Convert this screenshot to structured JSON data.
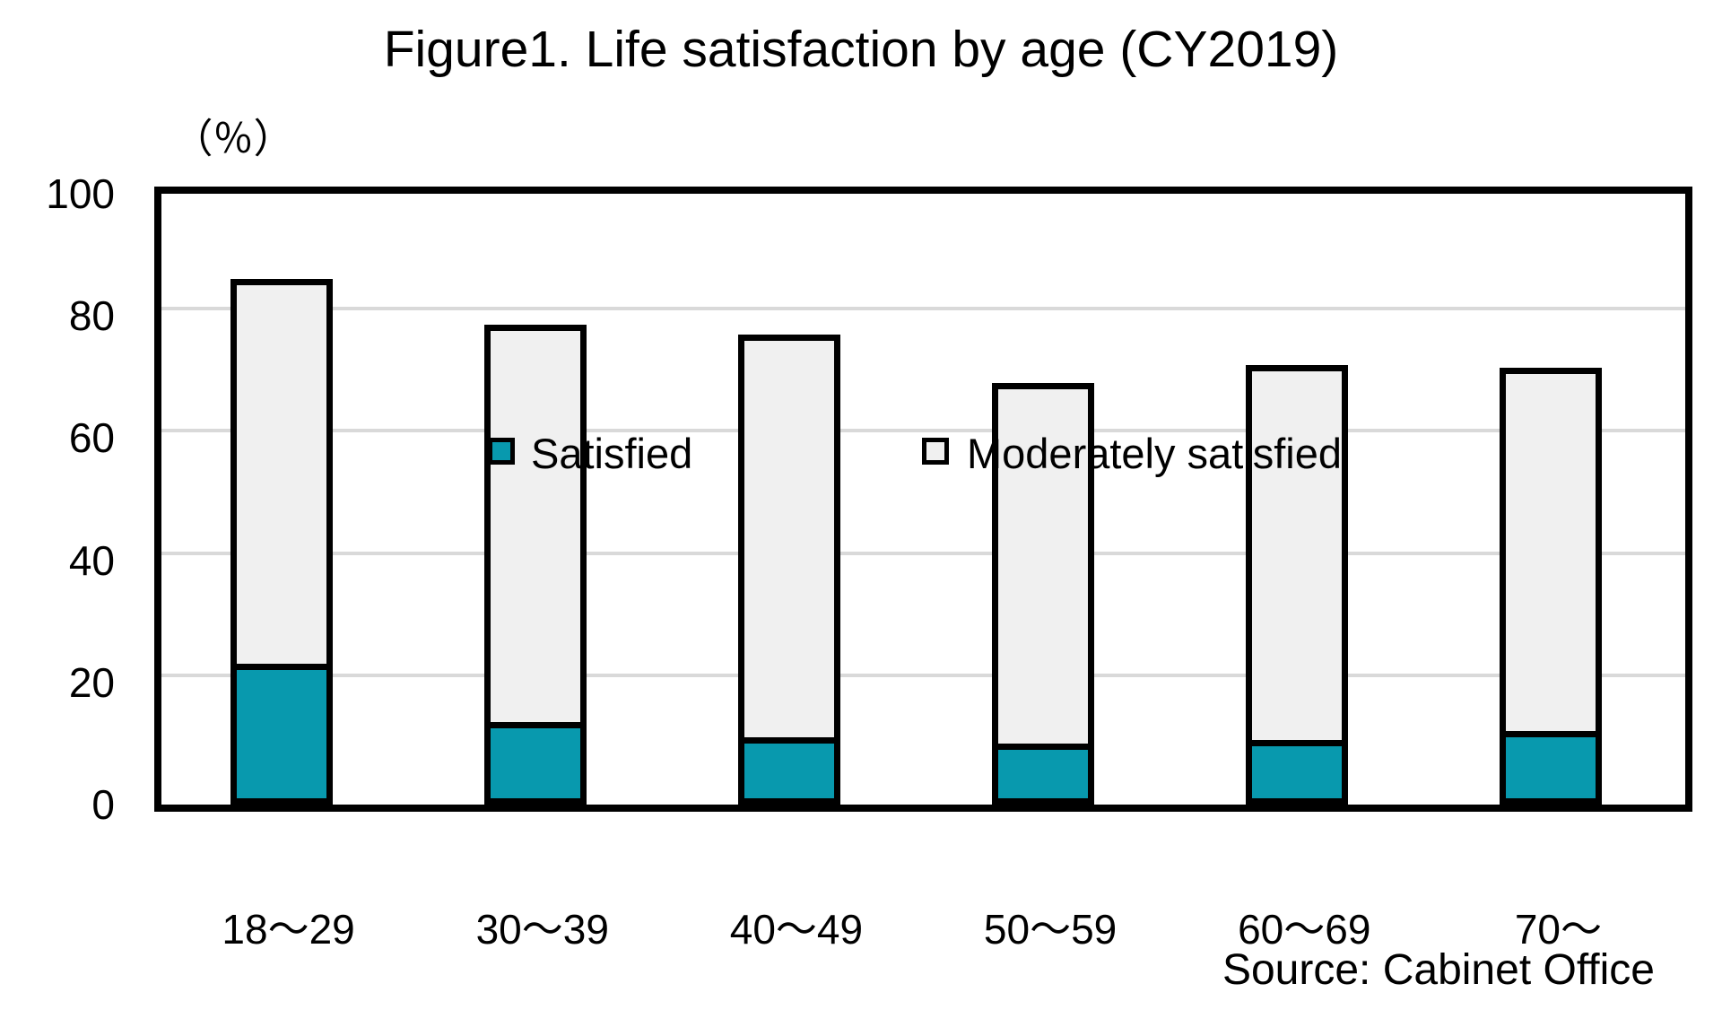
{
  "title": "Figure1. Life satisfaction by age (CY2019)",
  "axis_unit_label": "（％）",
  "source_note": "Source: Cabinet Office",
  "legend": {
    "satisfied_label": "Satisfied",
    "moderately_label": "Moderately satisfied"
  },
  "colors": {
    "satisfied_fill": "#0899ae",
    "moderately_fill": "#f0f0f0",
    "gridline": "#d9d9d9",
    "border": "#000000",
    "background": "#ffffff"
  },
  "chart_data": {
    "type": "bar",
    "subtype": "stacked-column",
    "title": "Figure1. Life satisfaction by age (CY2019)",
    "categories": [
      "18～29",
      "30～39",
      "40～49",
      "50～59",
      "60～69",
      "70～"
    ],
    "series": [
      {
        "name": "Satisfied",
        "color": "#0899ae",
        "values": [
          22,
          12.5,
          10,
          9,
          9.5,
          11
        ]
      },
      {
        "name": "Moderately satisfied",
        "color": "#f0f0f0",
        "values": [
          64,
          66,
          67,
          60,
          62.5,
          60.5
        ]
      }
    ],
    "stacked_totals": [
      86,
      78.5,
      77,
      69,
      72,
      71.5
    ],
    "xlabel": "",
    "ylabel": "（％）",
    "ylim": [
      0,
      100
    ],
    "yticks": [
      0,
      20,
      40,
      60,
      80,
      100
    ],
    "grid": true,
    "legend_position": "top-inside",
    "annotations": [
      "Source: Cabinet Office"
    ]
  }
}
